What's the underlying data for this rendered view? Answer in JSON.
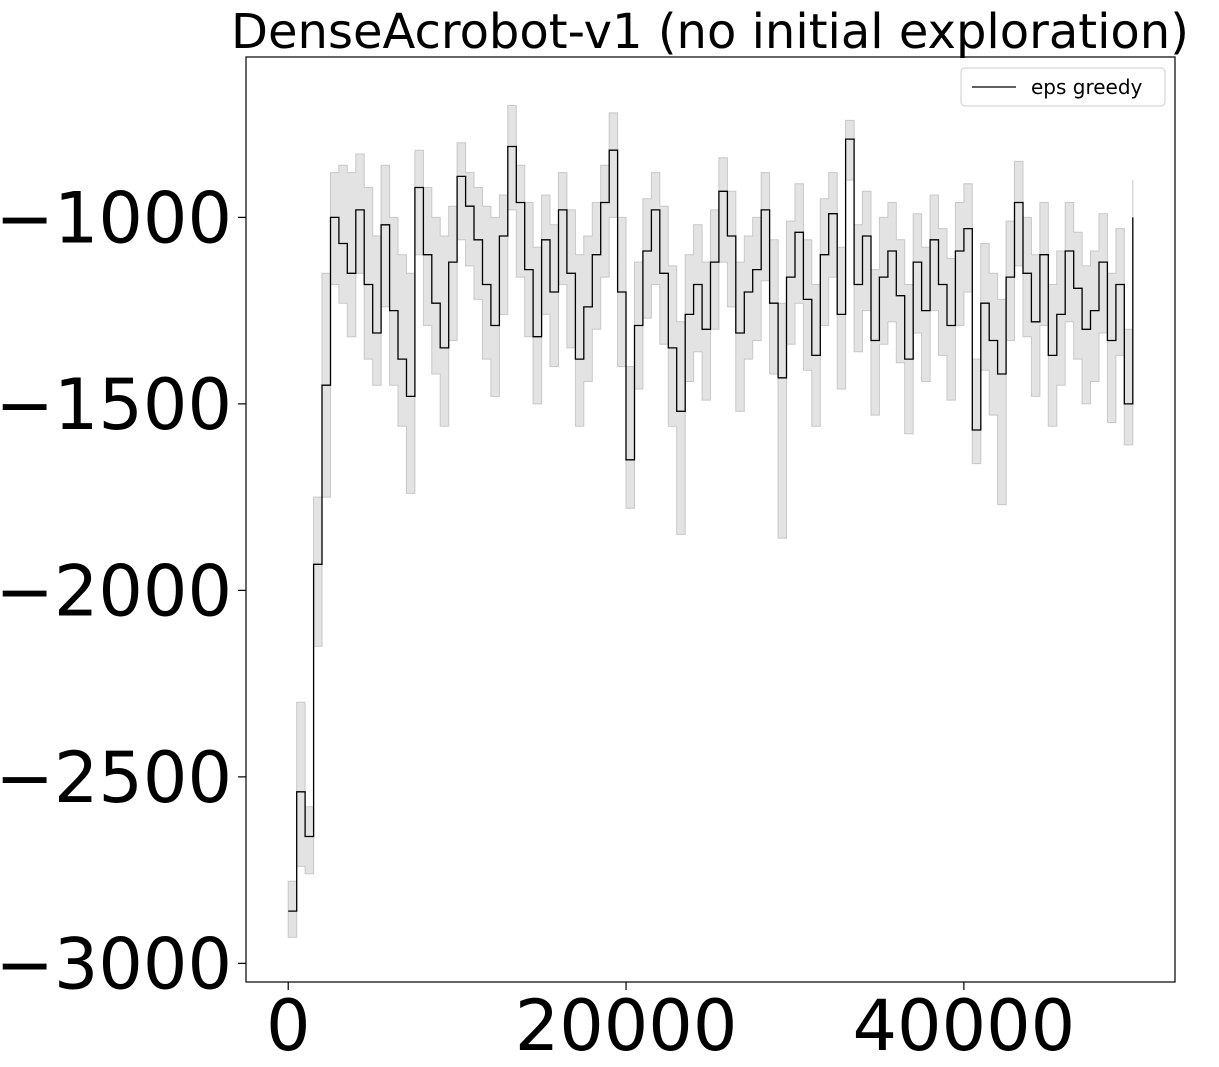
{
  "chart_data": {
    "type": "line",
    "title": "DenseAcrobot-v1 (no initial exploration)",
    "xlabel": "",
    "ylabel": "",
    "xlim": [
      -2500,
      52500
    ],
    "ylim": [
      -3050,
      -570
    ],
    "xticks": [
      0,
      20000,
      40000
    ],
    "xtick_labels": [
      "0",
      "20000",
      "40000"
    ],
    "yticks": [
      -3000,
      -2500,
      -2000,
      -1500,
      -1000
    ],
    "ytick_labels": [
      "−3000",
      "−2500",
      "−2000",
      "−1500",
      "−1000"
    ],
    "grid": false,
    "legend_position": "top-right",
    "series": [
      {
        "name": "eps greedy",
        "color": "#000000",
        "band_color": "#d9d9d9",
        "x": [
          0,
          500,
          1000,
          1500,
          2000,
          2500,
          3000,
          3500,
          4000,
          4500,
          5000,
          5500,
          6000,
          6500,
          7000,
          7500,
          8000,
          8500,
          9000,
          9500,
          10000,
          10500,
          11000,
          11500,
          12000,
          12500,
          13000,
          13500,
          14000,
          14500,
          15000,
          15500,
          16000,
          16500,
          17000,
          17500,
          18000,
          18500,
          19000,
          19500,
          20000,
          20500,
          21000,
          21500,
          22000,
          22500,
          23000,
          23500,
          24000,
          24500,
          25000,
          25500,
          26000,
          26500,
          27000,
          27500,
          28000,
          28500,
          29000,
          29500,
          30000,
          30500,
          31000,
          31500,
          32000,
          32500,
          33000,
          33500,
          34000,
          34500,
          35000,
          35500,
          36000,
          36500,
          37000,
          37500,
          38000,
          38500,
          39000,
          39500,
          40000,
          40500,
          41000,
          41500,
          42000,
          42500,
          43000,
          43500,
          44000,
          44500,
          45000,
          45500,
          46000,
          46500,
          47000,
          47500,
          48000,
          48500,
          49000,
          49500,
          50000
        ],
        "values": [
          -2860,
          -2540,
          -2660,
          -1930,
          -1450,
          -1000,
          -1070,
          -1150,
          -980,
          -1180,
          -1310,
          -1020,
          -1250,
          -1380,
          -1480,
          -920,
          -1100,
          -1230,
          -1350,
          -1120,
          -890,
          -970,
          -1060,
          -1180,
          -1290,
          -1050,
          -810,
          -960,
          -1140,
          -1320,
          -1060,
          -1200,
          -980,
          -1150,
          -1380,
          -1240,
          -1100,
          -960,
          -820,
          -1200,
          -1650,
          -1290,
          -1090,
          -980,
          -1150,
          -1350,
          -1520,
          -1260,
          -1180,
          -1300,
          -1120,
          -930,
          -1050,
          -1310,
          -1200,
          -1140,
          -980,
          -1230,
          -1430,
          -1160,
          -1040,
          -1220,
          -1370,
          -1100,
          -990,
          -1260,
          -790,
          -1180,
          -1050,
          -1330,
          -1160,
          -1090,
          -1210,
          -1380,
          -1120,
          -1250,
          -1060,
          -1180,
          -1290,
          -1090,
          -1030,
          -1570,
          -1230,
          -1330,
          -1420,
          -1160,
          -960,
          -1150,
          -1280,
          -1100,
          -1370,
          -1260,
          -1090,
          -1190,
          -1300,
          -1250,
          -1120,
          -1330,
          -1180,
          -1500,
          -1000
        ],
        "upper": [
          -2780,
          -2300,
          -2580,
          -1750,
          -1150,
          -880,
          -860,
          -880,
          -830,
          -920,
          -1050,
          -860,
          -1000,
          -1100,
          -1150,
          -820,
          -920,
          -1000,
          -1050,
          -970,
          -800,
          -880,
          -920,
          -970,
          -1000,
          -940,
          -700,
          -860,
          -960,
          -1080,
          -940,
          -1020,
          -880,
          -980,
          -1100,
          -1050,
          -960,
          -860,
          -720,
          -1000,
          -1400,
          -1120,
          -950,
          -880,
          -970,
          -1130,
          -1280,
          -1100,
          -1020,
          -1120,
          -980,
          -840,
          -930,
          -1120,
          -1050,
          -1000,
          -880,
          -1060,
          -1230,
          -1010,
          -910,
          -1060,
          -1180,
          -950,
          -880,
          -1080,
          -740,
          -1020,
          -930,
          -1140,
          -1000,
          -960,
          -1060,
          -1180,
          -990,
          -1080,
          -940,
          -1030,
          -1110,
          -960,
          -910,
          -1380,
          -1070,
          -1150,
          -1220,
          -1010,
          -850,
          -1000,
          -1100,
          -960,
          -1180,
          -1090,
          -960,
          -1040,
          -1130,
          -1090,
          -990,
          -1150,
          -1030,
          -1300,
          -900
        ],
        "lower": [
          -2930,
          -2740,
          -2760,
          -2150,
          -1750,
          -1180,
          -1230,
          -1320,
          -1150,
          -1380,
          -1450,
          -1240,
          -1450,
          -1560,
          -1740,
          -1100,
          -1290,
          -1420,
          -1560,
          -1330,
          -1060,
          -1130,
          -1220,
          -1380,
          -1480,
          -1260,
          -980,
          -1160,
          -1320,
          -1500,
          -1260,
          -1400,
          -1180,
          -1350,
          -1560,
          -1440,
          -1300,
          -1160,
          -1000,
          -1400,
          -1780,
          -1460,
          -1270,
          -1180,
          -1340,
          -1560,
          -1850,
          -1440,
          -1360,
          -1490,
          -1300,
          -1120,
          -1240,
          -1520,
          -1380,
          -1330,
          -1170,
          -1420,
          -1860,
          -1340,
          -1230,
          -1410,
          -1560,
          -1290,
          -1160,
          -1460,
          -900,
          -1360,
          -1250,
          -1530,
          -1340,
          -1280,
          -1390,
          -1580,
          -1310,
          -1440,
          -1250,
          -1370,
          -1490,
          -1290,
          -1200,
          -1660,
          -1410,
          -1530,
          -1770,
          -1330,
          -1130,
          -1320,
          -1480,
          -1290,
          -1560,
          -1450,
          -1280,
          -1380,
          -1500,
          -1440,
          -1310,
          -1550,
          -1370,
          -1610,
          -1100
        ]
      }
    ]
  }
}
